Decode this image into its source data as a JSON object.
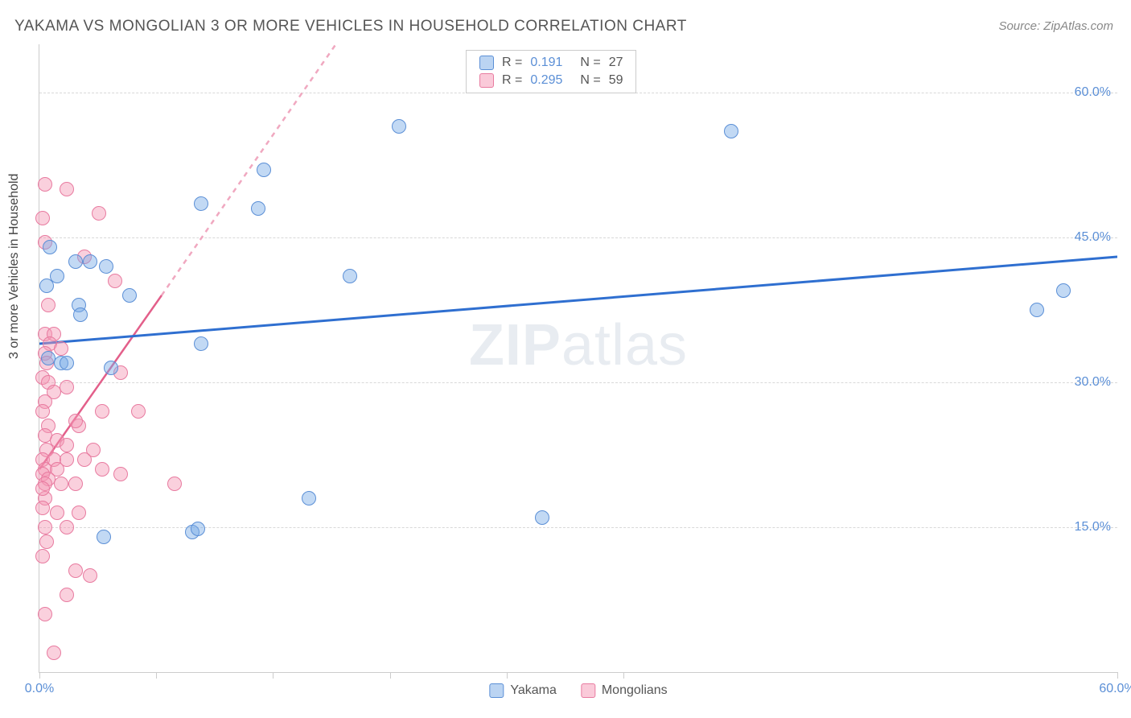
{
  "title": "YAKAMA VS MONGOLIAN 3 OR MORE VEHICLES IN HOUSEHOLD CORRELATION CHART",
  "source": "Source: ZipAtlas.com",
  "watermark_bold": "ZIP",
  "watermark_light": "atlas",
  "ylabel": "3 or more Vehicles in Household",
  "colors": {
    "yakama_fill": "rgba(120,170,230,0.45)",
    "yakama_stroke": "#5b8fd6",
    "mongolian_fill": "rgba(245,150,180,0.45)",
    "mongolian_stroke": "#e87ba0",
    "trend_yakama": "#2f6fd0",
    "trend_mongolian_solid": "#e35f8a",
    "trend_mongolian_dash": "#f0a8c0",
    "tick_color": "#5b8fd6",
    "grid_color": "#d8d8d8",
    "text_color": "#555555"
  },
  "chart": {
    "type": "scatter",
    "xlim": [
      0,
      60
    ],
    "ylim": [
      0,
      65
    ],
    "y_gridlines": [
      15,
      30,
      45,
      60
    ],
    "y_tick_labels": [
      "15.0%",
      "30.0%",
      "45.0%",
      "60.0%"
    ],
    "x_tick_positions": [
      0,
      6.5,
      13,
      19.5,
      26,
      32.5,
      60
    ],
    "x_tick_labels": {
      "0": "0.0%",
      "60": "60.0%"
    },
    "marker_radius": 9,
    "marker_stroke_width": 1.5,
    "trend_line_width_yakama": 3,
    "trend_line_width_mongolian": 2.5
  },
  "legend_top": {
    "rows": [
      {
        "swatch_fill": "rgba(120,170,230,0.5)",
        "swatch_stroke": "#5b8fd6",
        "r_label": "R =",
        "r_value": "0.191",
        "n_label": "N =",
        "n_value": "27"
      },
      {
        "swatch_fill": "rgba(245,150,180,0.5)",
        "swatch_stroke": "#e87ba0",
        "r_label": "R =",
        "r_value": "0.295",
        "n_label": "N =",
        "n_value": "59"
      }
    ]
  },
  "legend_bottom": {
    "items": [
      {
        "swatch_fill": "rgba(120,170,230,0.5)",
        "swatch_stroke": "#5b8fd6",
        "label": "Yakama"
      },
      {
        "swatch_fill": "rgba(245,150,180,0.5)",
        "swatch_stroke": "#e87ba0",
        "label": "Mongolians"
      }
    ]
  },
  "trend_lines": {
    "yakama": {
      "x1": 0,
      "y1": 34,
      "x2": 60,
      "y2": 43
    },
    "mongolian_solid": {
      "x1": 0,
      "y1": 21,
      "x2": 6.8,
      "y2": 39
    },
    "mongolian_dash": {
      "x1": 6.8,
      "y1": 39,
      "x2": 16.5,
      "y2": 65
    }
  },
  "series": {
    "yakama": [
      {
        "x": 0.6,
        "y": 44
      },
      {
        "x": 1.0,
        "y": 41
      },
      {
        "x": 0.4,
        "y": 40
      },
      {
        "x": 2.0,
        "y": 42.5
      },
      {
        "x": 2.8,
        "y": 42.5
      },
      {
        "x": 3.7,
        "y": 42
      },
      {
        "x": 2.2,
        "y": 38
      },
      {
        "x": 2.3,
        "y": 37
      },
      {
        "x": 5.0,
        "y": 39
      },
      {
        "x": 9.0,
        "y": 48.5
      },
      {
        "x": 12.2,
        "y": 48
      },
      {
        "x": 12.5,
        "y": 52
      },
      {
        "x": 20.0,
        "y": 56.5
      },
      {
        "x": 38.5,
        "y": 56
      },
      {
        "x": 17.3,
        "y": 41
      },
      {
        "x": 9.0,
        "y": 34
      },
      {
        "x": 1.2,
        "y": 32
      },
      {
        "x": 1.5,
        "y": 32
      },
      {
        "x": 0.5,
        "y": 32.5
      },
      {
        "x": 4.0,
        "y": 31.5
      },
      {
        "x": 3.6,
        "y": 14
      },
      {
        "x": 8.5,
        "y": 14.5
      },
      {
        "x": 8.8,
        "y": 14.8
      },
      {
        "x": 15.0,
        "y": 18
      },
      {
        "x": 28.0,
        "y": 16
      },
      {
        "x": 55.5,
        "y": 37.5
      },
      {
        "x": 57.0,
        "y": 39.5
      }
    ],
    "mongolian": [
      {
        "x": 0.3,
        "y": 50.5
      },
      {
        "x": 1.5,
        "y": 50
      },
      {
        "x": 0.2,
        "y": 47
      },
      {
        "x": 3.3,
        "y": 47.5
      },
      {
        "x": 0.3,
        "y": 44.5
      },
      {
        "x": 2.5,
        "y": 43
      },
      {
        "x": 4.2,
        "y": 40.5
      },
      {
        "x": 0.5,
        "y": 38
      },
      {
        "x": 0.3,
        "y": 35
      },
      {
        "x": 0.8,
        "y": 35
      },
      {
        "x": 0.6,
        "y": 34
      },
      {
        "x": 0.3,
        "y": 33
      },
      {
        "x": 1.2,
        "y": 33.5
      },
      {
        "x": 0.4,
        "y": 32
      },
      {
        "x": 4.5,
        "y": 31
      },
      {
        "x": 0.2,
        "y": 30.5
      },
      {
        "x": 0.5,
        "y": 30
      },
      {
        "x": 0.8,
        "y": 29
      },
      {
        "x": 1.5,
        "y": 29.5
      },
      {
        "x": 0.3,
        "y": 28
      },
      {
        "x": 0.2,
        "y": 27
      },
      {
        "x": 3.5,
        "y": 27
      },
      {
        "x": 5.5,
        "y": 27
      },
      {
        "x": 0.5,
        "y": 25.5
      },
      {
        "x": 2.2,
        "y": 25.5
      },
      {
        "x": 2.0,
        "y": 26
      },
      {
        "x": 0.3,
        "y": 24.5
      },
      {
        "x": 1.0,
        "y": 24
      },
      {
        "x": 1.5,
        "y": 23.5
      },
      {
        "x": 0.4,
        "y": 23
      },
      {
        "x": 3.0,
        "y": 23
      },
      {
        "x": 0.2,
        "y": 22
      },
      {
        "x": 0.8,
        "y": 22
      },
      {
        "x": 1.5,
        "y": 22
      },
      {
        "x": 2.5,
        "y": 22
      },
      {
        "x": 0.3,
        "y": 21
      },
      {
        "x": 1.0,
        "y": 21
      },
      {
        "x": 0.2,
        "y": 20.5
      },
      {
        "x": 0.5,
        "y": 20
      },
      {
        "x": 0.3,
        "y": 19.5
      },
      {
        "x": 1.2,
        "y": 19.5
      },
      {
        "x": 2.0,
        "y": 19.5
      },
      {
        "x": 3.5,
        "y": 21
      },
      {
        "x": 4.5,
        "y": 20.5
      },
      {
        "x": 7.5,
        "y": 19.5
      },
      {
        "x": 0.3,
        "y": 18
      },
      {
        "x": 0.2,
        "y": 17
      },
      {
        "x": 1.0,
        "y": 16.5
      },
      {
        "x": 2.2,
        "y": 16.5
      },
      {
        "x": 0.3,
        "y": 15
      },
      {
        "x": 1.5,
        "y": 15
      },
      {
        "x": 0.4,
        "y": 13.5
      },
      {
        "x": 0.2,
        "y": 12
      },
      {
        "x": 2.0,
        "y": 10.5
      },
      {
        "x": 2.8,
        "y": 10
      },
      {
        "x": 1.5,
        "y": 8
      },
      {
        "x": 0.3,
        "y": 6
      },
      {
        "x": 0.8,
        "y": 2
      },
      {
        "x": 0.2,
        "y": 19
      }
    ]
  }
}
